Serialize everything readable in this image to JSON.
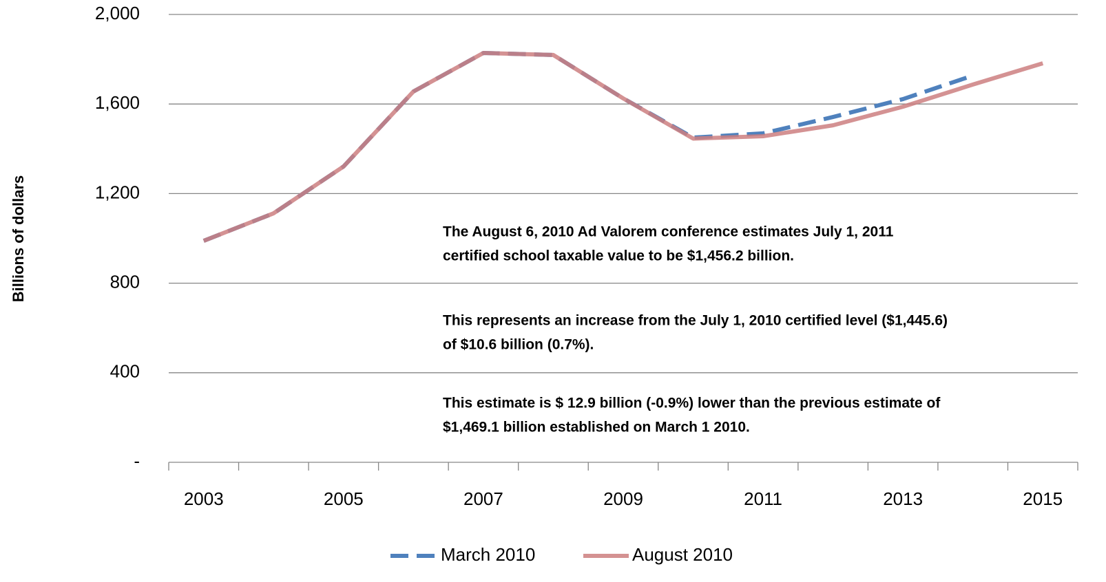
{
  "chart_data": {
    "type": "line",
    "y_label": "Billions of dollars",
    "categories": [
      "2003",
      null,
      "2005",
      null,
      "2007",
      null,
      "2009",
      null,
      "2011",
      null,
      "2013",
      null,
      "2015"
    ],
    "series": [
      {
        "name": "March 2010",
        "color": "#4f81bd",
        "dash": true,
        "values": [
          989,
          1112,
          1321,
          1656,
          1828,
          1819,
          1625,
          1450,
          1469.1,
          1542,
          1622,
          1727,
          null
        ]
      },
      {
        "name": "August 2010",
        "color": "#cd7f80",
        "dash": false,
        "values": [
          989,
          1112,
          1321,
          1656,
          1828,
          1819,
          1625,
          1445.6,
          1456.2,
          1505,
          1588,
          1687,
          1782
        ]
      }
    ],
    "ylim": [
      0,
      2000
    ],
    "yticks": [
      {
        "value": 0,
        "label": "-"
      },
      400,
      800,
      {
        "value": 1200,
        "label": "1,200"
      },
      {
        "value": 1600,
        "label": "1,600"
      },
      {
        "value": 2000,
        "label": "2,000"
      }
    ],
    "grid": true,
    "legend": "bottom",
    "annotations": [
      "The August 6, 2010 Ad Valorem conference estimates  July 1, 2011",
      "certified school taxable value to be $1,456.2 billion.",
      "This represents an increase from the July 1, 2010 certified level ($1,445.6)",
      "of $10.6 billion (0.7%).",
      "This estimate is $ 12.9 billion (-0.9%) lower than the previous estimate of",
      "$1,469.1 billion established on March 1 2010."
    ]
  }
}
